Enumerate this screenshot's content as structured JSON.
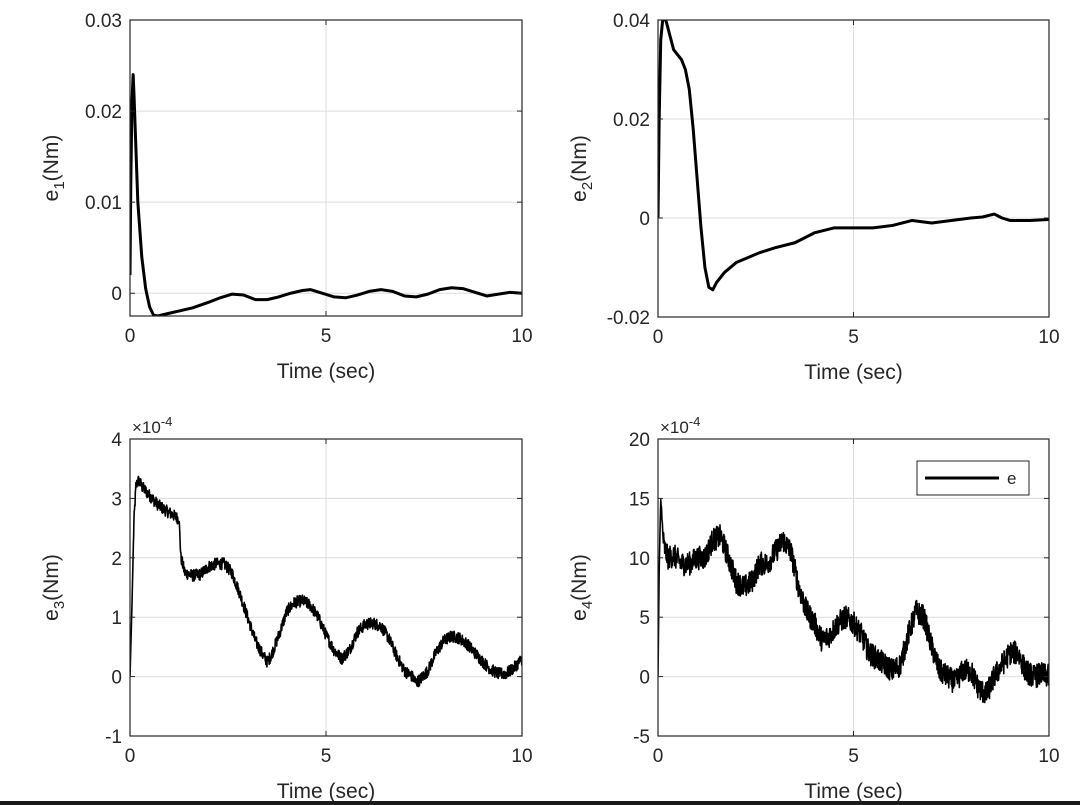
{
  "chart_data": [
    {
      "type": "line",
      "title": "",
      "xlabel": "Time (sec)",
      "ylabel": {
        "base": "e",
        "sub": "1",
        "unit": "(Nm)"
      },
      "xlim": [
        0,
        10
      ],
      "ylim": [
        -0.0025,
        0.03
      ],
      "xticks": [
        0,
        5,
        10
      ],
      "xtick_labels": [
        "0",
        "5",
        "10"
      ],
      "yticks": [
        0,
        0.01,
        0.02,
        0.03
      ],
      "ytick_labels": [
        "0",
        "0.01",
        "0.02",
        "0.03"
      ],
      "exponent": null,
      "grid": true,
      "legend": null,
      "series": [
        {
          "name": "e",
          "color": "#000000",
          "noise": 0,
          "x": [
            0,
            0.02,
            0.05,
            0.08,
            0.1,
            0.15,
            0.2,
            0.3,
            0.4,
            0.5,
            0.6,
            0.7,
            0.8,
            1.0,
            1.3,
            1.6,
            2.0,
            2.3,
            2.6,
            2.9,
            3.2,
            3.5,
            3.8,
            4.1,
            4.4,
            4.6,
            4.9,
            5.2,
            5.5,
            5.8,
            6.1,
            6.4,
            6.7,
            7.0,
            7.3,
            7.6,
            7.9,
            8.2,
            8.5,
            8.8,
            9.1,
            9.4,
            9.7,
            10.0
          ],
          "y": [
            0.002,
            0.012,
            0.021,
            0.024,
            0.022,
            0.016,
            0.01,
            0.004,
            0.0005,
            -0.0015,
            -0.0024,
            -0.0025,
            -0.0024,
            -0.0022,
            -0.0019,
            -0.0016,
            -0.001,
            -0.0005,
            -0.0001,
            -0.0002,
            -0.0007,
            -0.0007,
            -0.0004,
            0.0,
            0.0003,
            0.0004,
            0.0,
            -0.0004,
            -0.0005,
            -0.0002,
            0.0002,
            0.0004,
            0.0002,
            -0.0003,
            -0.0004,
            -0.0001,
            0.0004,
            0.0006,
            0.0005,
            0.0001,
            -0.0003,
            -0.0001,
            0.0001,
            0.0
          ]
        }
      ]
    },
    {
      "type": "line",
      "title": "",
      "xlabel": "Time (sec)",
      "ylabel": {
        "base": "e",
        "sub": "2",
        "unit": "(Nm)"
      },
      "xlim": [
        0,
        10
      ],
      "ylim": [
        -0.02,
        0.04
      ],
      "xticks": [
        0,
        5,
        10
      ],
      "xtick_labels": [
        "0",
        "5",
        "10"
      ],
      "yticks": [
        -0.02,
        0,
        0.02,
        0.04
      ],
      "ytick_labels": [
        "-0.02",
        "0",
        "0.02",
        "0.04"
      ],
      "exponent": null,
      "grid": true,
      "legend": null,
      "series": [
        {
          "name": "e",
          "color": "#000000",
          "noise": 0,
          "x": [
            0,
            0.03,
            0.07,
            0.12,
            0.2,
            0.3,
            0.4,
            0.5,
            0.6,
            0.7,
            0.8,
            0.9,
            1.0,
            1.1,
            1.2,
            1.3,
            1.4,
            1.5,
            1.7,
            2.0,
            2.3,
            2.6,
            3.0,
            3.5,
            4.0,
            4.5,
            5.0,
            5.5,
            6.0,
            6.5,
            7.0,
            7.5,
            8.0,
            8.3,
            8.6,
            8.8,
            9.0,
            9.5,
            10.0
          ],
          "y": [
            0.0,
            0.02,
            0.036,
            0.04,
            0.04,
            0.037,
            0.034,
            0.033,
            0.032,
            0.03,
            0.026,
            0.018,
            0.008,
            -0.002,
            -0.01,
            -0.014,
            -0.0145,
            -0.013,
            -0.011,
            -0.009,
            -0.008,
            -0.007,
            -0.006,
            -0.005,
            -0.003,
            -0.002,
            -0.002,
            -0.002,
            -0.0015,
            -0.0005,
            -0.001,
            -0.0005,
            0.0,
            0.0002,
            0.0008,
            0.0,
            -0.0005,
            -0.0005,
            -0.0003
          ]
        }
      ]
    },
    {
      "type": "line",
      "title": "",
      "xlabel": "Time (sec)",
      "ylabel": {
        "base": "e",
        "sub": "3",
        "unit": "(Nm)"
      },
      "xlim": [
        0,
        10
      ],
      "ylim": [
        -1,
        4
      ],
      "xticks": [
        0,
        5,
        10
      ],
      "xtick_labels": [
        "0",
        "5",
        "10"
      ],
      "yticks": [
        -1,
        0,
        1,
        2,
        3,
        4
      ],
      "ytick_labels": [
        "-1",
        "0",
        "1",
        "2",
        "3",
        "4"
      ],
      "exponent": {
        "base": "×10",
        "power": "-4"
      },
      "grid": true,
      "legend": null,
      "series": [
        {
          "name": "e",
          "color": "#000000",
          "noise": 0.1,
          "x": [
            0,
            0.05,
            0.1,
            0.15,
            0.2,
            0.25,
            0.3,
            0.5,
            0.7,
            0.9,
            1.1,
            1.25,
            1.3,
            1.4,
            1.6,
            1.8,
            2.0,
            2.2,
            2.4,
            2.6,
            2.8,
            3.0,
            3.2,
            3.4,
            3.5,
            3.6,
            3.8,
            4.0,
            4.2,
            4.4,
            4.6,
            4.8,
            5.0,
            5.2,
            5.4,
            5.6,
            5.8,
            6.0,
            6.2,
            6.4,
            6.6,
            6.8,
            7.0,
            7.2,
            7.3,
            7.4,
            7.6,
            7.8,
            8.0,
            8.2,
            8.4,
            8.6,
            8.8,
            9.0,
            9.2,
            9.4,
            9.6,
            9.8,
            10.0
          ],
          "y": [
            0.0,
            1.2,
            2.6,
            3.2,
            3.3,
            3.28,
            3.2,
            3.05,
            2.9,
            2.8,
            2.72,
            2.65,
            2.0,
            1.75,
            1.7,
            1.72,
            1.85,
            1.9,
            1.9,
            1.75,
            1.4,
            1.0,
            0.6,
            0.35,
            0.25,
            0.35,
            0.7,
            1.1,
            1.25,
            1.28,
            1.2,
            1.0,
            0.7,
            0.45,
            0.3,
            0.45,
            0.75,
            0.88,
            0.9,
            0.85,
            0.65,
            0.35,
            0.1,
            0.0,
            -0.1,
            -0.05,
            0.1,
            0.4,
            0.6,
            0.68,
            0.65,
            0.55,
            0.4,
            0.25,
            0.12,
            0.05,
            0.05,
            0.15,
            0.3
          ]
        }
      ]
    },
    {
      "type": "line",
      "title": "",
      "xlabel": "Time (sec)",
      "ylabel": {
        "base": "e",
        "sub": "4",
        "unit": "(Nm)"
      },
      "xlim": [
        0,
        10
      ],
      "ylim": [
        -5,
        20
      ],
      "xticks": [
        0,
        5,
        10
      ],
      "xtick_labels": [
        "0",
        "5",
        "10"
      ],
      "yticks": [
        -5,
        0,
        5,
        10,
        15,
        20
      ],
      "ytick_labels": [
        "-5",
        "0",
        "5",
        "10",
        "15",
        "20"
      ],
      "exponent": {
        "base": "×10",
        "power": "-4"
      },
      "grid": true,
      "legend": {
        "position": "top-right",
        "entries": [
          "e"
        ]
      },
      "series": [
        {
          "name": "e",
          "color": "#000000",
          "noise": 1.0,
          "x": [
            0,
            0.03,
            0.07,
            0.1,
            0.15,
            0.25,
            0.4,
            0.6,
            0.8,
            1.0,
            1.2,
            1.4,
            1.6,
            1.8,
            2.0,
            2.2,
            2.4,
            2.6,
            2.8,
            3.0,
            3.2,
            3.4,
            3.6,
            3.8,
            4.0,
            4.2,
            4.4,
            4.6,
            4.8,
            5.0,
            5.2,
            5.4,
            5.6,
            5.8,
            6.0,
            6.2,
            6.4,
            6.6,
            6.8,
            7.0,
            7.2,
            7.4,
            7.6,
            7.8,
            8.0,
            8.2,
            8.4,
            8.6,
            8.8,
            9.0,
            9.2,
            9.4,
            9.6,
            9.8,
            10.0
          ],
          "y": [
            0.0,
            9.0,
            15.0,
            13.0,
            11.0,
            10.0,
            10.2,
            9.5,
            9.5,
            10.0,
            10.0,
            11.5,
            11.8,
            10.0,
            8.0,
            7.5,
            8.0,
            9.5,
            9.5,
            10.5,
            11.5,
            10.5,
            7.5,
            5.5,
            4.5,
            3.0,
            3.5,
            4.5,
            5.0,
            4.5,
            3.5,
            2.0,
            1.5,
            1.0,
            0.5,
            1.0,
            3.5,
            5.5,
            5.0,
            2.5,
            0.5,
            0.0,
            -0.5,
            0.5,
            0.5,
            -1.0,
            -1.5,
            0.0,
            1.0,
            2.0,
            2.0,
            0.5,
            0.0,
            0.2,
            0.0
          ]
        }
      ]
    }
  ]
}
